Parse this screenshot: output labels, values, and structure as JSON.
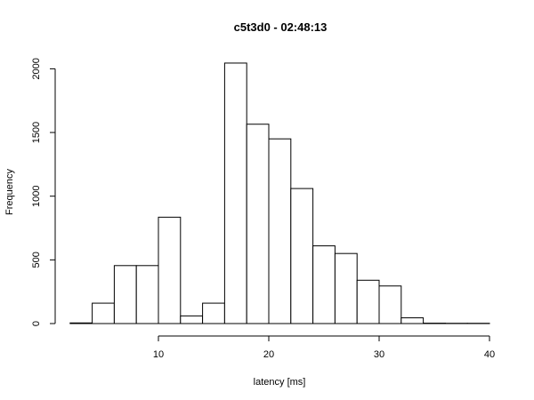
{
  "chart_data": {
    "type": "bar",
    "title": "c5t3d0 - 02:48:13",
    "xlabel": "latency [ms]",
    "ylabel": "Frequency",
    "xlim": [
      2,
      40
    ],
    "ylim": [
      0,
      2050
    ],
    "xticks": [
      10,
      20,
      30,
      40
    ],
    "yticks": [
      0,
      500,
      1000,
      1500,
      2000
    ],
    "bins": [
      {
        "x0": 2,
        "x1": 4,
        "count": 5
      },
      {
        "x0": 4,
        "x1": 6,
        "count": 160
      },
      {
        "x0": 6,
        "x1": 8,
        "count": 455
      },
      {
        "x0": 8,
        "x1": 10,
        "count": 455
      },
      {
        "x0": 10,
        "x1": 12,
        "count": 835
      },
      {
        "x0": 12,
        "x1": 14,
        "count": 60
      },
      {
        "x0": 14,
        "x1": 16,
        "count": 160
      },
      {
        "x0": 16,
        "x1": 18,
        "count": 2045
      },
      {
        "x0": 18,
        "x1": 20,
        "count": 1565
      },
      {
        "x0": 20,
        "x1": 22,
        "count": 1450
      },
      {
        "x0": 22,
        "x1": 24,
        "count": 1060
      },
      {
        "x0": 24,
        "x1": 26,
        "count": 610
      },
      {
        "x0": 26,
        "x1": 28,
        "count": 550
      },
      {
        "x0": 28,
        "x1": 30,
        "count": 340
      },
      {
        "x0": 30,
        "x1": 32,
        "count": 295
      },
      {
        "x0": 32,
        "x1": 34,
        "count": 45
      },
      {
        "x0": 34,
        "x1": 36,
        "count": 3
      },
      {
        "x0": 36,
        "x1": 38,
        "count": 2
      },
      {
        "x0": 38,
        "x1": 40,
        "count": 2
      }
    ],
    "grid": false,
    "legend": "none"
  }
}
